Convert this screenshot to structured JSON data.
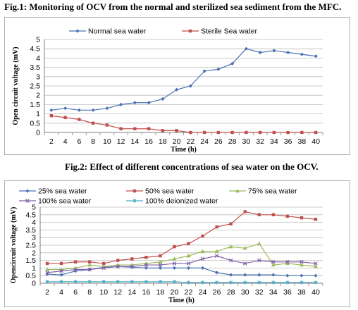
{
  "titles": {
    "fig1": "Fig.1: Monitoring of OCV from the normal and sterilized sea sediment from the MFC.",
    "fig2": "Fig.2: Effect of different concentrations of sea water on the OCV."
  },
  "chart_data": [
    {
      "type": "line",
      "title": "Fig.1: Monitoring of OCV from the normal and sterilized sea sediment from the MFC.",
      "xlabel": "Time (h)",
      "ylabel": "Open circuit voltage (mV)",
      "x": [
        2,
        4,
        6,
        8,
        10,
        12,
        14,
        16,
        18,
        20,
        22,
        24,
        26,
        28,
        30,
        32,
        34,
        36,
        38,
        40
      ],
      "ylim": [
        0,
        5
      ],
      "yticks": [
        0,
        0.5,
        1,
        1.5,
        2,
        2.5,
        3,
        3.5,
        4,
        4.5,
        5
      ],
      "grid": "horizontal",
      "legend": "top",
      "series": [
        {
          "name": "Normal sea water",
          "color": "#4a72b4",
          "marker": "diamond",
          "values": [
            1.2,
            1.3,
            1.2,
            1.2,
            1.3,
            1.5,
            1.6,
            1.6,
            1.8,
            2.3,
            2.5,
            3.3,
            3.4,
            3.7,
            4.5,
            4.3,
            4.4,
            4.3,
            4.2,
            4.1
          ]
        },
        {
          "name": "Sterile Sea water",
          "color": "#c0504d",
          "marker": "square",
          "values": [
            0.9,
            0.8,
            0.7,
            0.5,
            0.4,
            0.2,
            0.2,
            0.2,
            0.1,
            0.1,
            0,
            0,
            0,
            0,
            0,
            0,
            0,
            0,
            0,
            0
          ]
        }
      ]
    },
    {
      "type": "line",
      "title": "Fig.2: Effect of different concentrations of sea water on the OCV.",
      "xlabel": "Time (h)",
      "ylabel": "Opencircuit voltage (mV)",
      "x": [
        2,
        4,
        6,
        8,
        10,
        12,
        14,
        16,
        18,
        20,
        22,
        24,
        26,
        28,
        30,
        32,
        34,
        36,
        38,
        40
      ],
      "ylim": [
        0,
        5
      ],
      "yticks": [
        0,
        0.5,
        1,
        1.5,
        2,
        2.5,
        3,
        3.5,
        4,
        4.5,
        5
      ],
      "grid": "horizontal",
      "legend": "top",
      "series": [
        {
          "name": "25% sea water",
          "color": "#4a72b4",
          "marker": "diamond",
          "values": [
            0.6,
            0.55,
            0.8,
            0.9,
            1.05,
            1.1,
            1.05,
            1.0,
            1.0,
            1.0,
            1.0,
            1.0,
            0.7,
            0.55,
            0.55,
            0.55,
            0.55,
            0.5,
            0.5,
            0.5
          ]
        },
        {
          "name": "50% sea water",
          "color": "#c0504d",
          "marker": "square",
          "values": [
            1.3,
            1.3,
            1.4,
            1.4,
            1.3,
            1.5,
            1.6,
            1.7,
            1.8,
            2.4,
            2.6,
            3.1,
            3.7,
            3.9,
            4.7,
            4.5,
            4.5,
            4.4,
            4.3,
            4.2
          ]
        },
        {
          "name": "75% sea water",
          "color": "#9bbb59",
          "marker": "triangle",
          "values": [
            0.9,
            0.9,
            1.0,
            1.2,
            1.1,
            1.2,
            1.2,
            1.3,
            1.4,
            1.6,
            1.8,
            2.1,
            2.1,
            2.4,
            2.3,
            2.6,
            1.2,
            1.3,
            1.2,
            1.1
          ]
        },
        {
          "name": "100% sea water",
          "color": "#7f62a8",
          "marker": "x",
          "values": [
            0.7,
            0.8,
            0.9,
            0.9,
            1.0,
            1.1,
            1.1,
            1.2,
            1.2,
            1.3,
            1.3,
            1.6,
            1.8,
            1.5,
            1.3,
            1.5,
            1.4,
            1.4,
            1.4,
            1.3
          ]
        },
        {
          "name": "100% deionized water",
          "color": "#4bacc6",
          "marker": "star",
          "values": [
            0.1,
            0.1,
            0.1,
            0.1,
            0.1,
            0.1,
            0.1,
            0.1,
            0.1,
            0.1,
            0.05,
            0.05,
            0.05,
            0.05,
            0.05,
            0.05,
            0.05,
            0.05,
            0.05,
            0.05
          ]
        }
      ]
    }
  ]
}
